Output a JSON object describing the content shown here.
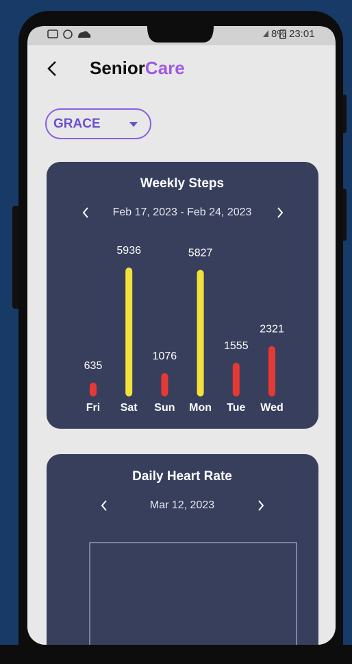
{
  "status_bar": {
    "battery": "8%",
    "time": "23:01"
  },
  "header": {
    "title_first": "Senior",
    "title_second": "Care"
  },
  "selector": {
    "label": "GRACE"
  },
  "weekly_steps": {
    "title": "Weekly Steps",
    "range": "Feb 17, 2023 - Feb 24, 2023",
    "days": [
      "Fri",
      "Sat",
      "Sun",
      "Mon",
      "Tue",
      "Wed"
    ],
    "values": [
      635,
      5936,
      1076,
      5827,
      1555,
      2321
    ],
    "colors": [
      "#e53935",
      "#f2e13a",
      "#e53935",
      "#f2e13a",
      "#e53935",
      "#e53935"
    ]
  },
  "heart_rate": {
    "title": "Daily Heart Rate",
    "date": "Mar 12, 2023"
  }
}
